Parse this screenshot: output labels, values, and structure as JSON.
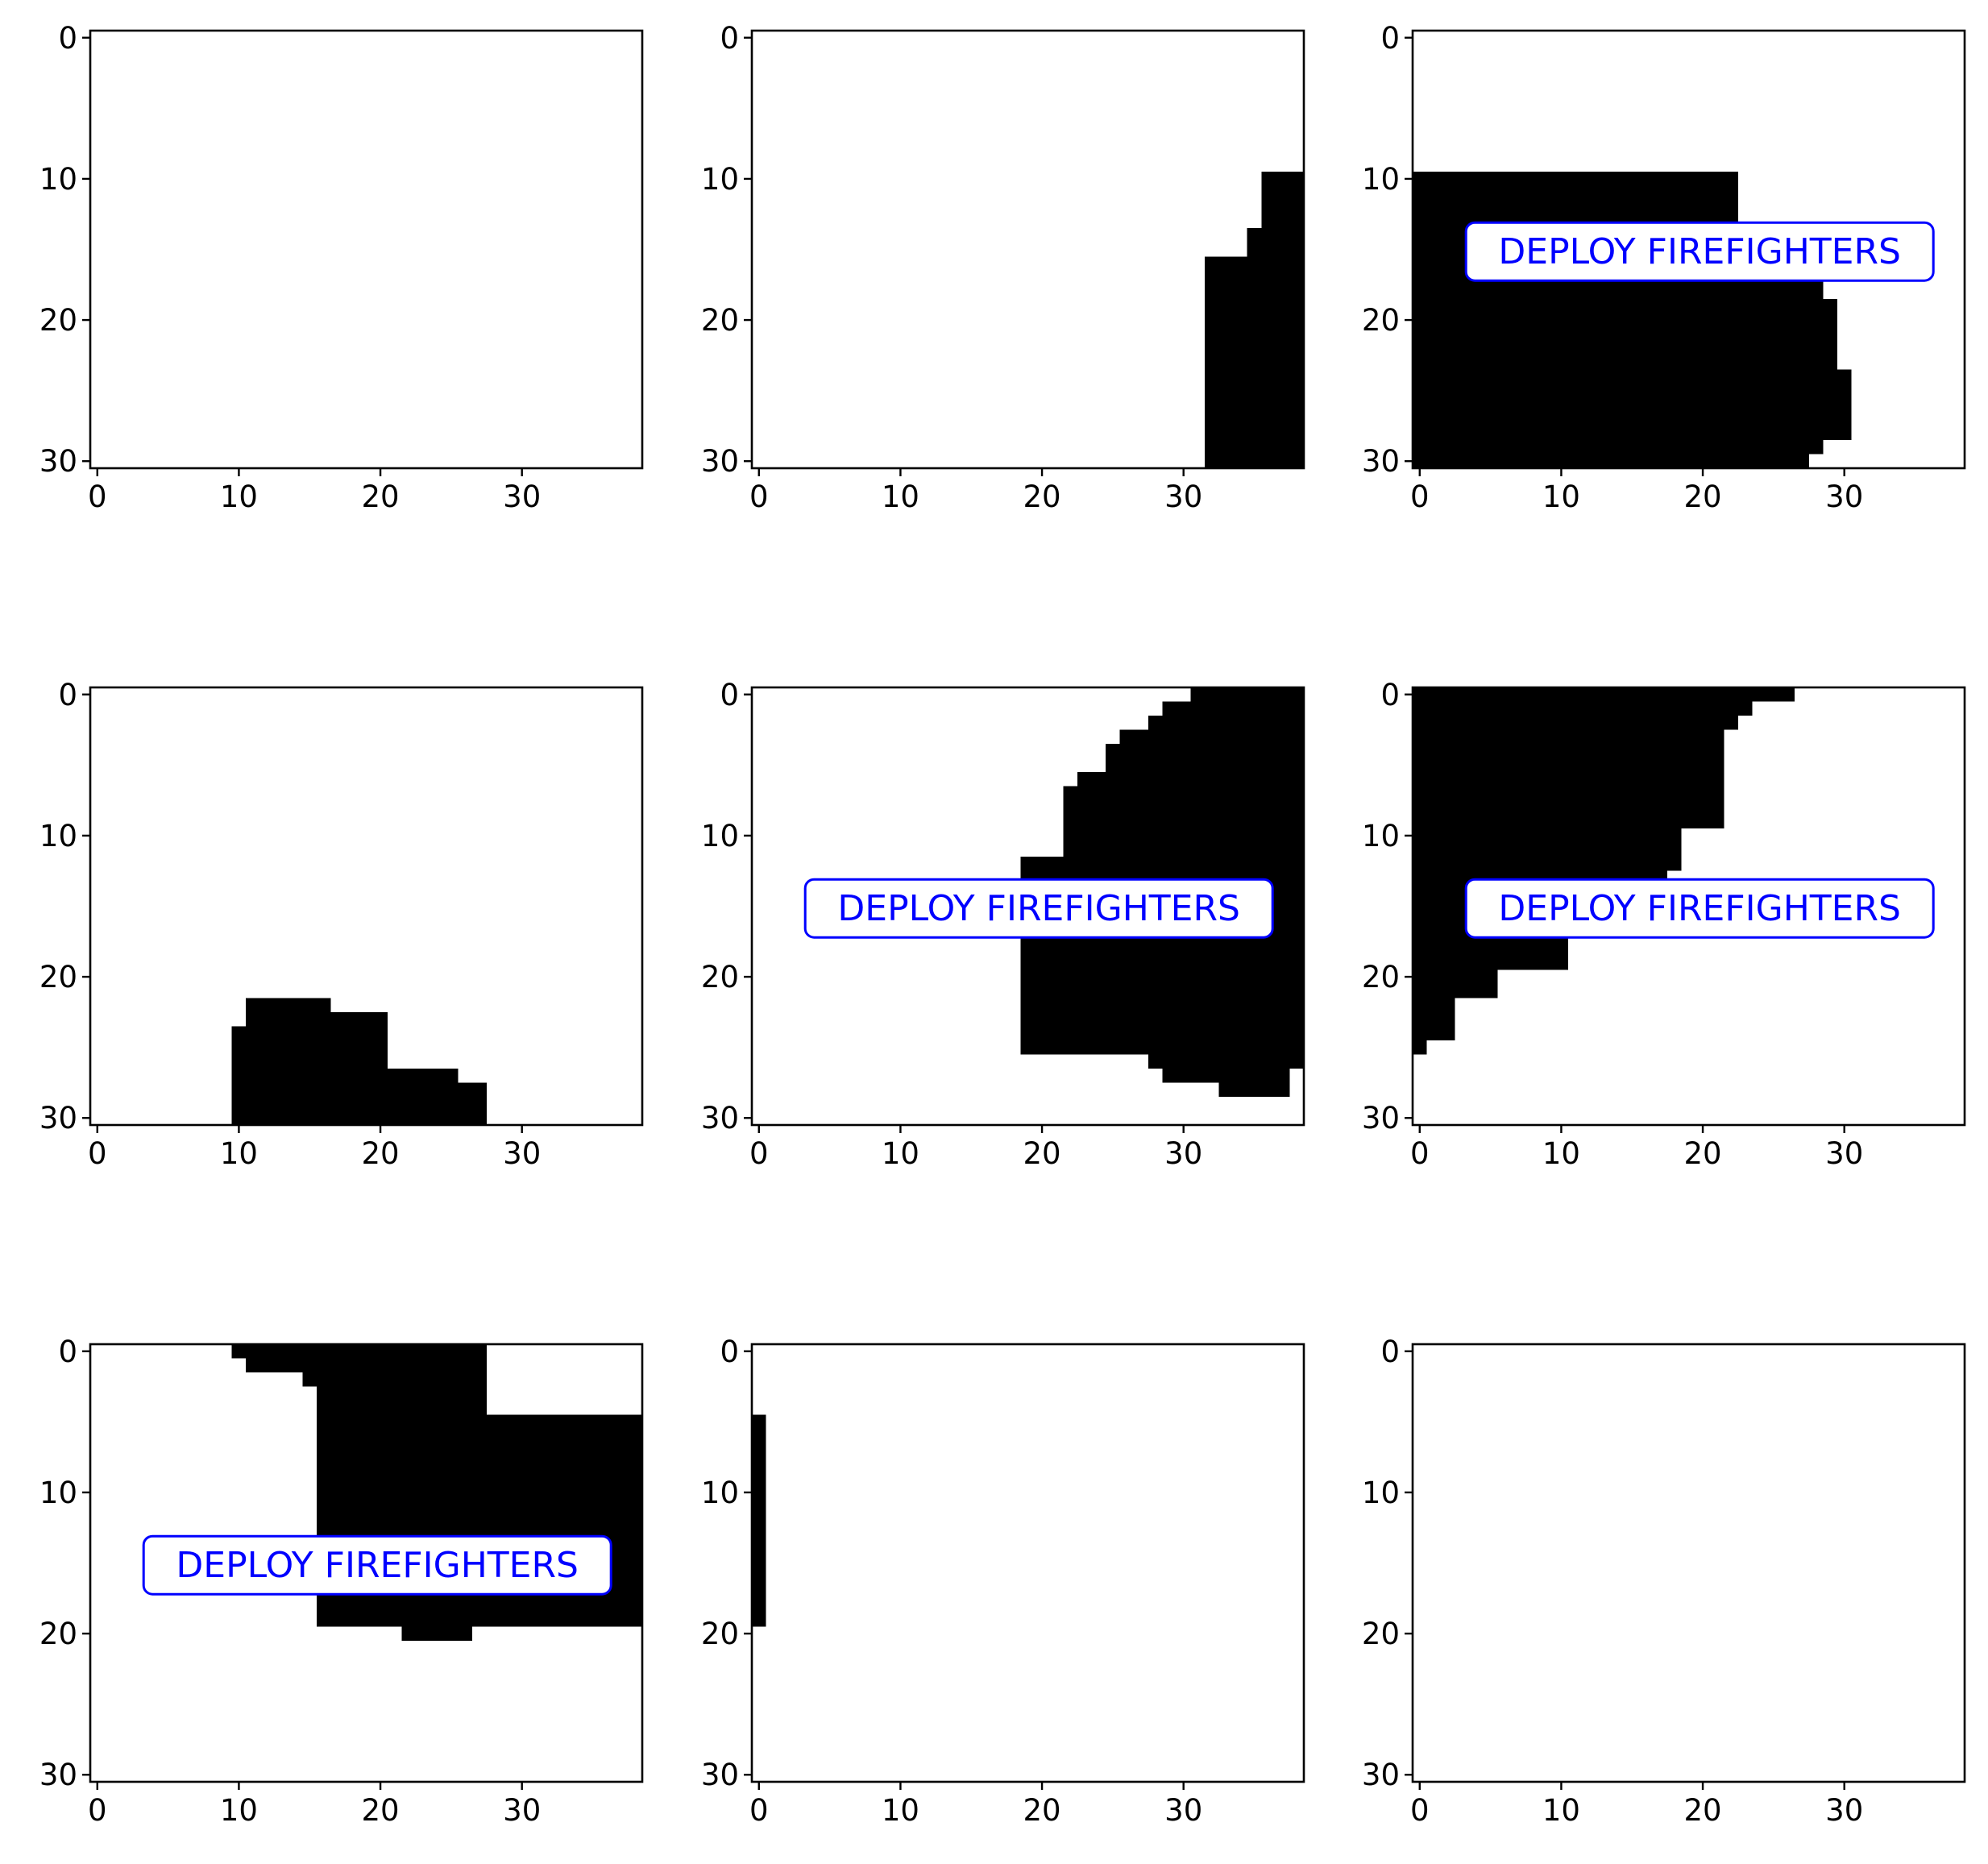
{
  "figure": {
    "layout": "3x3 grid of binary image panels",
    "fill_color": "#000000",
    "background_color": "#ffffff",
    "overlay_color": "#0000ff"
  },
  "chart_data": [
    {
      "type": "heatmap",
      "panel": 1,
      "xlim": [
        -0.5,
        38.5
      ],
      "ylim": [
        30.5,
        -0.5
      ],
      "xticks": [
        0,
        10,
        20,
        30
      ],
      "yticks": [
        0,
        10,
        20,
        30
      ],
      "label": "",
      "regions": []
    },
    {
      "type": "heatmap",
      "panel": 2,
      "xlim": [
        -0.5,
        38.5
      ],
      "ylim": [
        30.5,
        -0.5
      ],
      "xticks": [
        0,
        10,
        20,
        30
      ],
      "yticks": [
        0,
        10,
        20,
        30
      ],
      "label": "",
      "regions": [
        [
          35.5,
          9.5,
          38.5,
          13.5
        ],
        [
          34.5,
          13.5,
          38.5,
          15.5
        ],
        [
          31.5,
          15.5,
          38.5,
          30.5
        ]
      ]
    },
    {
      "type": "heatmap",
      "panel": 3,
      "xlim": [
        -0.5,
        38.5
      ],
      "ylim": [
        30.5,
        -0.5
      ],
      "xticks": [
        0,
        10,
        20,
        30
      ],
      "yticks": [
        0,
        10,
        20,
        30
      ],
      "label": "DEPLOY FIREFIGHTERS",
      "regions": [
        [
          -0.5,
          9.5,
          22.5,
          16.5
        ],
        [
          -0.5,
          16.5,
          28.5,
          18.5
        ],
        [
          -0.5,
          18.5,
          29.5,
          23.5
        ],
        [
          -0.5,
          23.5,
          30.5,
          28.5
        ],
        [
          -0.5,
          28.5,
          28.5,
          29.5
        ],
        [
          -0.5,
          29.5,
          27.5,
          30.5
        ]
      ]
    },
    {
      "type": "heatmap",
      "panel": 4,
      "xlim": [
        -0.5,
        38.5
      ],
      "ylim": [
        30.5,
        -0.5
      ],
      "xticks": [
        0,
        10,
        20,
        30
      ],
      "yticks": [
        0,
        10,
        20,
        30
      ],
      "label": "",
      "regions": [
        [
          10.5,
          21.5,
          16.5,
          22.5
        ],
        [
          10.5,
          22.5,
          20.5,
          23.5
        ],
        [
          9.5,
          23.5,
          20.5,
          26.5
        ],
        [
          9.5,
          26.5,
          25.5,
          27.5
        ],
        [
          9.5,
          27.5,
          27.5,
          30.5
        ]
      ]
    },
    {
      "type": "heatmap",
      "panel": 5,
      "xlim": [
        -0.5,
        38.5
      ],
      "ylim": [
        30.5,
        -0.5
      ],
      "xticks": [
        0,
        10,
        20,
        30
      ],
      "yticks": [
        0,
        10,
        20,
        30
      ],
      "label": "DEPLOY FIREFIGHTERS",
      "regions": [
        [
          30.5,
          -0.5,
          38.5,
          0.5
        ],
        [
          28.5,
          0.5,
          38.5,
          1.5
        ],
        [
          27.5,
          1.5,
          38.5,
          2.5
        ],
        [
          25.5,
          2.5,
          38.5,
          3.5
        ],
        [
          24.5,
          3.5,
          38.5,
          5.5
        ],
        [
          22.5,
          5.5,
          38.5,
          6.5
        ],
        [
          21.5,
          6.5,
          38.5,
          11.5
        ],
        [
          18.5,
          11.5,
          38.5,
          25.5
        ],
        [
          27.5,
          25.5,
          38.5,
          26.5
        ],
        [
          28.5,
          26.5,
          37.5,
          27.5
        ],
        [
          32.5,
          27.5,
          37.5,
          28.5
        ]
      ]
    },
    {
      "type": "heatmap",
      "panel": 6,
      "xlim": [
        -0.5,
        38.5
      ],
      "ylim": [
        30.5,
        -0.5
      ],
      "xticks": [
        0,
        10,
        20,
        30
      ],
      "yticks": [
        0,
        10,
        20,
        30
      ],
      "label": "DEPLOY FIREFIGHTERS",
      "regions": [
        [
          -0.5,
          -0.5,
          26.5,
          0.5
        ],
        [
          -0.5,
          0.5,
          23.5,
          1.5
        ],
        [
          -0.5,
          1.5,
          22.5,
          2.5
        ],
        [
          -0.5,
          2.5,
          21.5,
          3.5
        ],
        [
          -0.5,
          3.5,
          21.5,
          9.5
        ],
        [
          -0.5,
          9.5,
          18.5,
          12.5
        ],
        [
          -0.5,
          12.5,
          17.5,
          16.5
        ],
        [
          -0.5,
          16.5,
          10.5,
          19.5
        ],
        [
          -0.5,
          19.5,
          5.5,
          21.5
        ],
        [
          -0.5,
          21.5,
          2.5,
          24.5
        ],
        [
          -0.5,
          24.5,
          0.5,
          25.5
        ]
      ]
    },
    {
      "type": "heatmap",
      "panel": 7,
      "xlim": [
        -0.5,
        38.5
      ],
      "ylim": [
        30.5,
        -0.5
      ],
      "xticks": [
        0,
        10,
        20,
        30
      ],
      "yticks": [
        0,
        10,
        20,
        30
      ],
      "label": "DEPLOY FIREFIGHTERS",
      "regions": [
        [
          9.5,
          -0.5,
          27.5,
          0.5
        ],
        [
          10.5,
          0.5,
          27.5,
          1.5
        ],
        [
          14.5,
          1.5,
          27.5,
          2.5
        ],
        [
          15.5,
          2.5,
          27.5,
          4.5
        ],
        [
          15.5,
          4.5,
          38.5,
          19.5
        ],
        [
          21.5,
          19.5,
          26.5,
          20.5
        ]
      ]
    },
    {
      "type": "heatmap",
      "panel": 8,
      "xlim": [
        -0.5,
        38.5
      ],
      "ylim": [
        30.5,
        -0.5
      ],
      "xticks": [
        0,
        10,
        20,
        30
      ],
      "yticks": [
        0,
        10,
        20,
        30
      ],
      "label": "",
      "regions": [
        [
          -0.5,
          4.5,
          0.5,
          19.5
        ]
      ]
    },
    {
      "type": "heatmap",
      "panel": 9,
      "xlim": [
        -0.5,
        38.5
      ],
      "ylim": [
        30.5,
        -0.5
      ],
      "xticks": [
        0,
        10,
        20,
        30
      ],
      "yticks": [
        0,
        10,
        20,
        30
      ],
      "label": "",
      "regions": []
    }
  ]
}
